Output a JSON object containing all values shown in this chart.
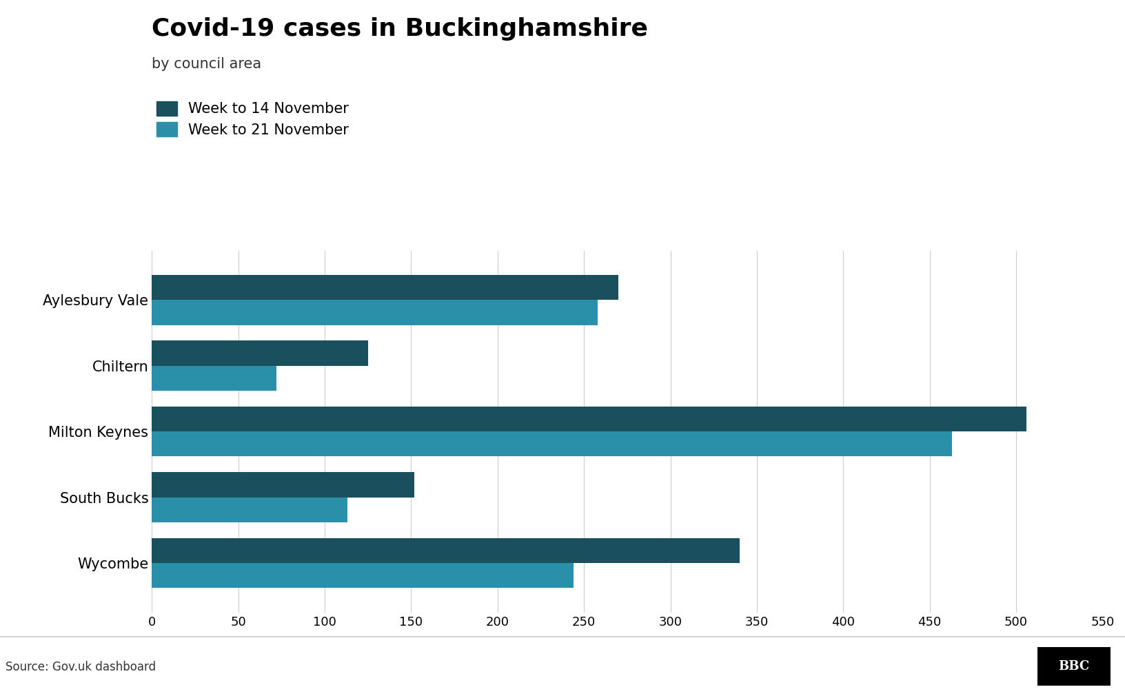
{
  "title": "Covid-19 cases in Buckinghamshire",
  "subtitle": "by council area",
  "source": "Source: Gov.uk dashboard",
  "legend": [
    "Week to 14 November",
    "Week to 21 November"
  ],
  "color_week1": "#1a4f5e",
  "color_week2": "#2a8fa8",
  "categories": [
    "Aylesbury Vale",
    "Chiltern",
    "Milton Keynes",
    "South Bucks",
    "Wycombe"
  ],
  "week1_values": [
    270,
    125,
    506,
    152,
    340
  ],
  "week2_values": [
    258,
    72,
    463,
    113,
    244
  ],
  "xlim": [
    0,
    550
  ],
  "xticks": [
    0,
    50,
    100,
    150,
    200,
    250,
    300,
    350,
    400,
    450,
    500,
    550
  ],
  "background_color": "#ffffff",
  "grid_color": "#cccccc",
  "title_fontsize": 26,
  "subtitle_fontsize": 15,
  "label_fontsize": 15,
  "tick_fontsize": 13,
  "bar_height": 0.38,
  "source_fontsize": 12
}
